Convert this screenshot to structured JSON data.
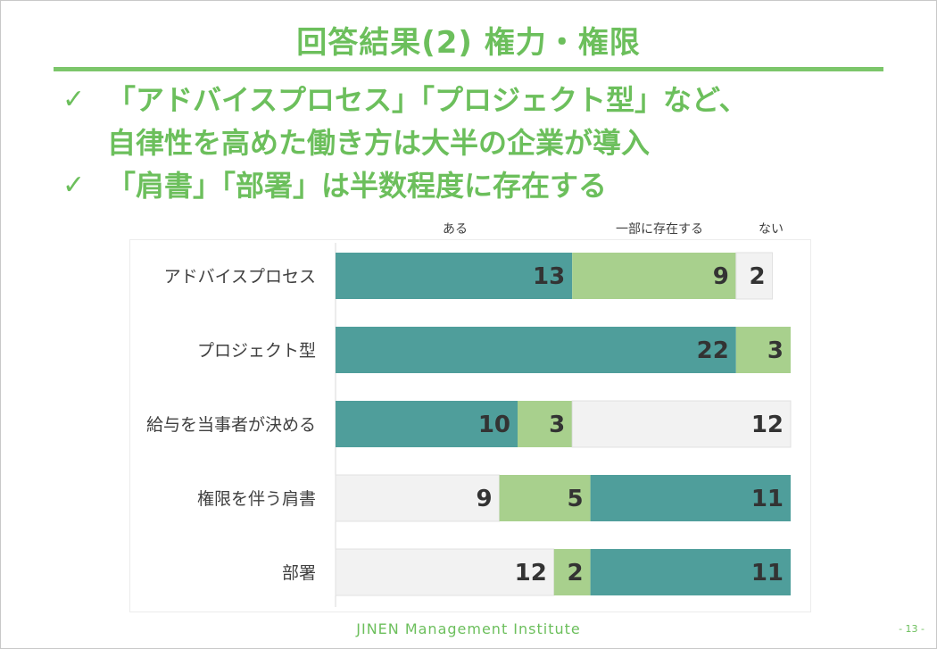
{
  "slide": {
    "title": "回答結果(2) 権力・権限",
    "bullets": [
      {
        "check": "✓",
        "line1": "「アドバイスプロセス」「プロジェクト型」など、",
        "line2": "自律性を高めた働き方は大半の企業が導入"
      },
      {
        "check": "✓",
        "line1": "「肩書」「部署」は半数程度に存在する",
        "line2": ""
      }
    ],
    "footer": "JINEN Management Institute",
    "page_number": "- 13 -"
  },
  "colors": {
    "title_green": "#6cbf5c",
    "aru": "#4f9e9b",
    "ichibu": "#a8d08d",
    "nai": "#f2f2f2"
  },
  "chart_data": {
    "type": "bar",
    "orientation": "horizontal",
    "stacked": true,
    "categories": [
      "アドバイスプロセス",
      "プロジェクト型",
      "給与を当事者が決める",
      "権限を伴う肩書",
      "部署"
    ],
    "legend_labels": {
      "aru": "ある",
      "ichibu": "一部に存在する",
      "nai": "ない"
    },
    "segments": [
      [
        {
          "series": "aru",
          "value": 13
        },
        {
          "series": "ichibu",
          "value": 9
        },
        {
          "series": "nai",
          "value": 2
        }
      ],
      [
        {
          "series": "aru",
          "value": 22
        },
        {
          "series": "ichibu",
          "value": 3
        }
      ],
      [
        {
          "series": "aru",
          "value": 10
        },
        {
          "series": "ichibu",
          "value": 3
        },
        {
          "series": "nai",
          "value": 12
        }
      ],
      [
        {
          "series": "nai",
          "value": 9
        },
        {
          "series": "ichibu",
          "value": 5
        },
        {
          "series": "aru",
          "value": 11
        }
      ],
      [
        {
          "series": "nai",
          "value": 12
        },
        {
          "series": "ichibu",
          "value": 2
        },
        {
          "series": "aru",
          "value": 11
        }
      ]
    ],
    "xlim": [
      0,
      25
    ],
    "legend_position": "top"
  }
}
